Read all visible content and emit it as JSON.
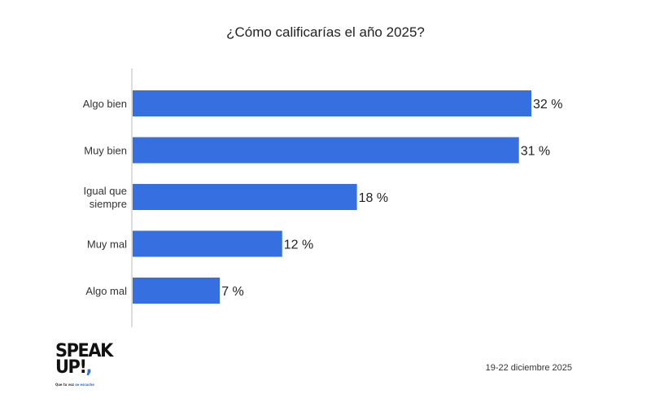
{
  "chart_data": {
    "type": "bar",
    "orientation": "horizontal",
    "title": "¿Cómo calificarías el año 2025?",
    "categories": [
      "Algo bien",
      "Muy bien",
      "Igual que siempre",
      "Muy mal",
      "Algo mal"
    ],
    "values": [
      32,
      31,
      18,
      12,
      7
    ],
    "value_labels": [
      "32 %",
      "31 %",
      "18 %",
      "12 %",
      "7 %"
    ],
    "xlim": [
      0,
      32
    ],
    "grid": false,
    "bar_color": "#3670E0"
  },
  "footer": {
    "date": "19-22 diciembre 2025"
  },
  "logo": {
    "line1": "SPEAK",
    "line2": "UP!",
    "tagline_start": "Que tu voz",
    "tagline_highlight": "se escuche",
    "accent_color": "#2F6FE0"
  }
}
